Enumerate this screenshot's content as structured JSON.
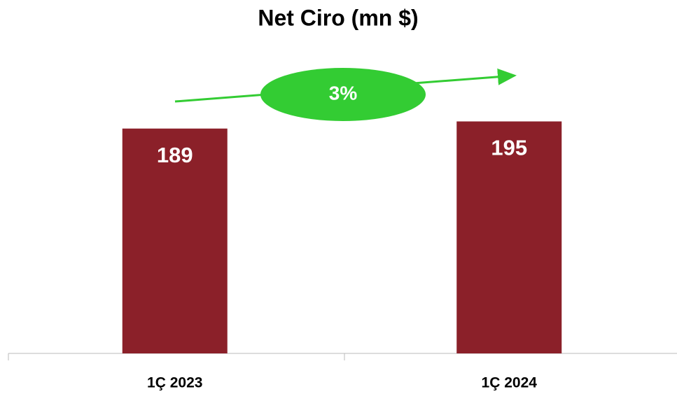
{
  "chart_data": {
    "type": "bar",
    "title": "Net Ciro (mn $)",
    "categories": [
      "1Ç 2023",
      "1Ç 2024"
    ],
    "values": [
      189,
      195
    ],
    "color": "#8b2029",
    "ylim": [
      0,
      220
    ],
    "annotation": "3%",
    "annotation_color": "#33cc33"
  }
}
